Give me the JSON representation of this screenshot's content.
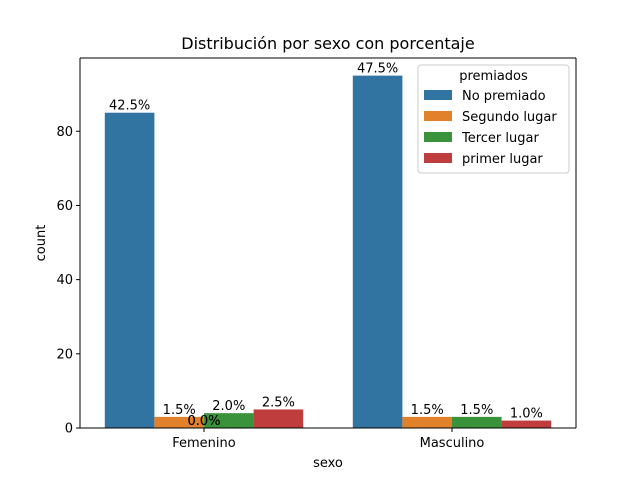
{
  "chart_data": {
    "type": "bar",
    "title": "Distribución por sexo con porcentaje",
    "xlabel": "sexo",
    "ylabel": "count",
    "categories": [
      "Femenino",
      "Masculino"
    ],
    "ylim": [
      0,
      99.75
    ],
    "yticks": [
      0,
      20,
      40,
      60,
      80
    ],
    "grid": false,
    "legend": {
      "title": "premiados",
      "placement": "top-right"
    },
    "series": [
      {
        "name": "No premiado",
        "color": "#3274a1",
        "values": [
          85,
          95
        ],
        "labels": [
          "42.5%",
          "47.5%"
        ]
      },
      {
        "name": "Segundo lugar",
        "color": "#e1812c",
        "values": [
          3,
          3
        ],
        "labels": [
          "1.5%",
          "1.5%"
        ]
      },
      {
        "name": "Tercer lugar",
        "color": "#3a923a",
        "values": [
          4,
          3
        ],
        "labels": [
          "2.0%",
          "1.5%"
        ]
      },
      {
        "name": "primer lugar",
        "color": "#c03d3e",
        "values": [
          5,
          2
        ],
        "labels": [
          "2.5%",
          "1.0%"
        ]
      }
    ],
    "extra_labels": [
      {
        "category": "Femenino",
        "text": "0.0%"
      },
      {
        "category": "Femenino",
        "text": "0.0%"
      }
    ]
  }
}
